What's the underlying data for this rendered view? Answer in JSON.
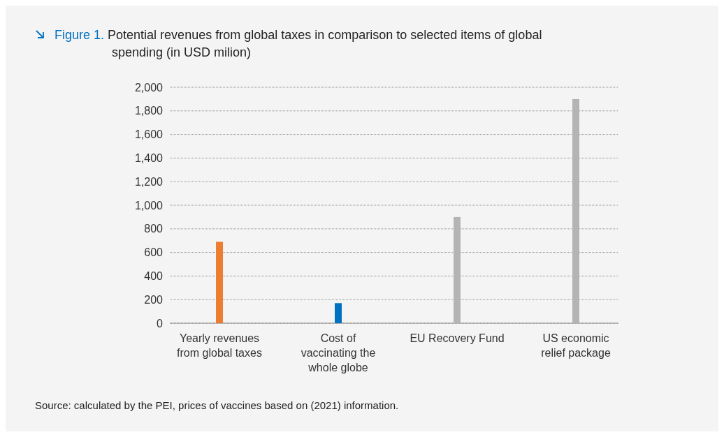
{
  "chart_data": {
    "type": "bar",
    "title": "Figure 1. Potential revenues from global taxes in comparison to selected items of global spending (in USD milion)",
    "categories": [
      "Yearly revenues from global taxes",
      "Cost of vaccinating the whole globe",
      "EU Recovery Fund",
      "US economic relief package"
    ],
    "values": [
      690,
      170,
      900,
      1900
    ],
    "colors": [
      "#ed7d31",
      "#0070c0",
      "#b4b4b4",
      "#b4b4b4"
    ],
    "ylim": [
      0,
      2000
    ],
    "yticks": [
      {
        "value": 0,
        "label": "0"
      },
      {
        "value": 200,
        "label": "200"
      },
      {
        "value": 400,
        "label": "400"
      },
      {
        "value": 600,
        "label": "600"
      },
      {
        "value": 800,
        "label": "800"
      },
      {
        "value": 1000,
        "label": "1,000"
      },
      {
        "value": 1200,
        "label": "1,200"
      },
      {
        "value": 1400,
        "label": "1,400"
      },
      {
        "value": 1600,
        "label": "1,600"
      },
      {
        "value": 1800,
        "label": "1,800"
      },
      {
        "value": 2000,
        "label": "2,000"
      }
    ],
    "grid": "y",
    "annotations": [
      "Source: calculated by the PEI, prices of vaccines based on (2021) information."
    ]
  }
}
